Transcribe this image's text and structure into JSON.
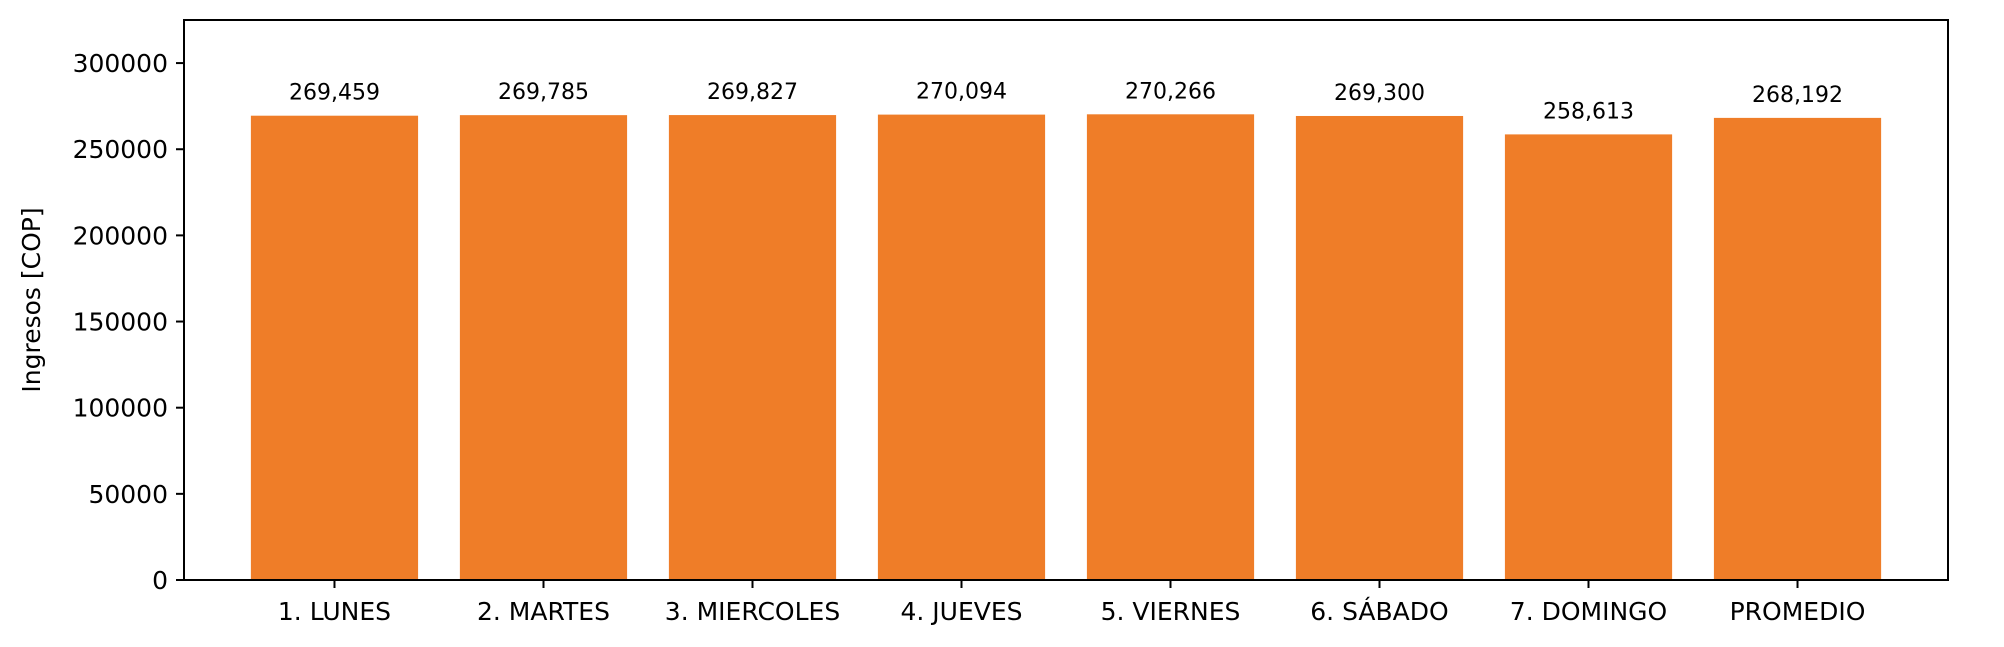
{
  "chart_data": {
    "type": "bar",
    "title": "",
    "xlabel": "",
    "ylabel": "Ingresos [COP]",
    "ylim": [
      0,
      325000
    ],
    "yticks": [
      0,
      50000,
      100000,
      150000,
      200000,
      250000,
      300000
    ],
    "categories": [
      "1. LUNES",
      "2. MARTES",
      "3. MIERCOLES",
      "4. JUEVES",
      "5. VIERNES",
      "6. SÁBADO",
      "7. DOMINGO",
      "PROMEDIO"
    ],
    "values": [
      269459,
      269785,
      269827,
      270094,
      270266,
      269300,
      258613,
      268192
    ],
    "value_labels": [
      "269,459",
      "269,785",
      "269,827",
      "270,094",
      "270,266",
      "269,300",
      "258,613",
      "268,192"
    ],
    "bar_color": "#ef7d28",
    "grid": false,
    "legend": "none"
  }
}
